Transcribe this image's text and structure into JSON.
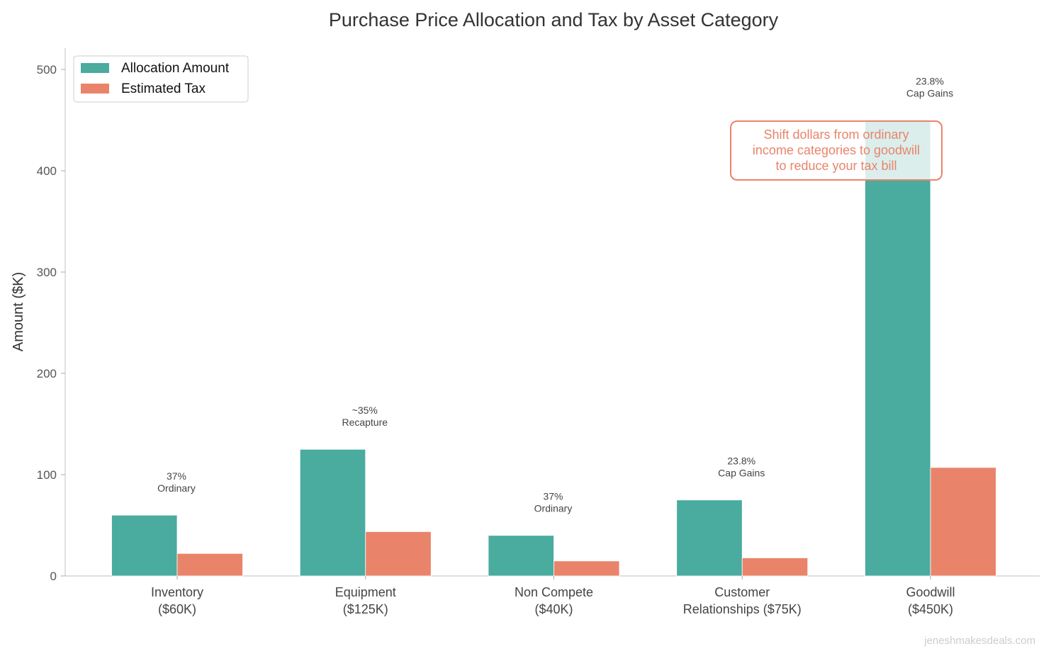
{
  "chart_data": {
    "type": "bar",
    "title": "Purchase Price Allocation and Tax by Asset Category",
    "xlabel": "",
    "ylabel": "Amount ($K)",
    "ylim": [
      0,
      521
    ],
    "yticks": [
      0,
      100,
      200,
      300,
      400,
      500
    ],
    "grid": false,
    "legend_position": "top-left",
    "categories": [
      "Inventory\n($60K)",
      "Equipment\n($125K)",
      "Non Compete\n($40K)",
      "Customer\nRelationships ($75K)",
      "Goodwill\n($450K)"
    ],
    "series": [
      {
        "name": "Allocation Amount",
        "color": "#4aab9f",
        "values": [
          60,
          125,
          40,
          75,
          450
        ]
      },
      {
        "name": "Estimated Tax",
        "color": "#e9846b",
        "values": [
          22.2,
          43.75,
          14.8,
          17.85,
          107.1
        ]
      }
    ],
    "bar_annotations": [
      "37%\nOrdinary",
      "~35%\nRecapture",
      "37%\nOrdinary",
      "23.8%\nCap Gains",
      "23.8%\nCap Gains"
    ],
    "callout": {
      "lines": [
        "Shift dollars from ordinary",
        "income categories to goodwill",
        "to reduce your tax bill"
      ],
      "color": "#e9846b"
    },
    "watermark": "jeneshmakesdeals.com"
  }
}
